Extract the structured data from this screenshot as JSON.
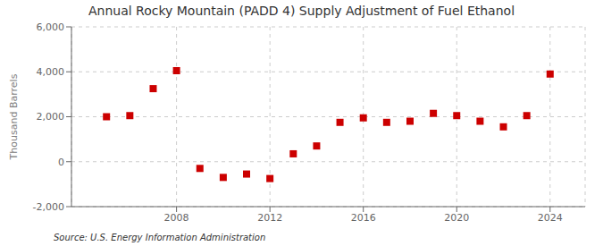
{
  "chart_data": {
    "type": "scatter",
    "title": "Annual Rocky Mountain (PADD 4) Supply Adjustment of Fuel Ethanol",
    "ylabel": "Thousand Barrels",
    "annotations": [
      "Source: U.S. Energy Information Administration"
    ],
    "x": [
      2005,
      2006,
      2007,
      2008,
      2009,
      2010,
      2011,
      2012,
      2013,
      2014,
      2015,
      2016,
      2017,
      2018,
      2019,
      2020,
      2021,
      2022,
      2023,
      2024
    ],
    "values": [
      2000,
      2050,
      3250,
      4050,
      -300,
      -700,
      -550,
      -750,
      350,
      700,
      1750,
      1950,
      1750,
      1800,
      2150,
      2050,
      1800,
      1550,
      2050,
      3900
    ],
    "color": "#cc0000",
    "marker": "square",
    "xlim": [
      2003.5,
      2025.5
    ],
    "xticks": [
      2008,
      2012,
      2016,
      2020,
      2024
    ],
    "ylim": [
      -2000,
      6000
    ],
    "yticks": [
      {
        "value": -2000,
        "label": "-2,000"
      },
      0,
      {
        "value": 2000,
        "label": "2,000"
      },
      {
        "value": 4000,
        "label": "4,000"
      },
      {
        "value": 6000,
        "label": "6,000"
      }
    ],
    "grid": true
  }
}
